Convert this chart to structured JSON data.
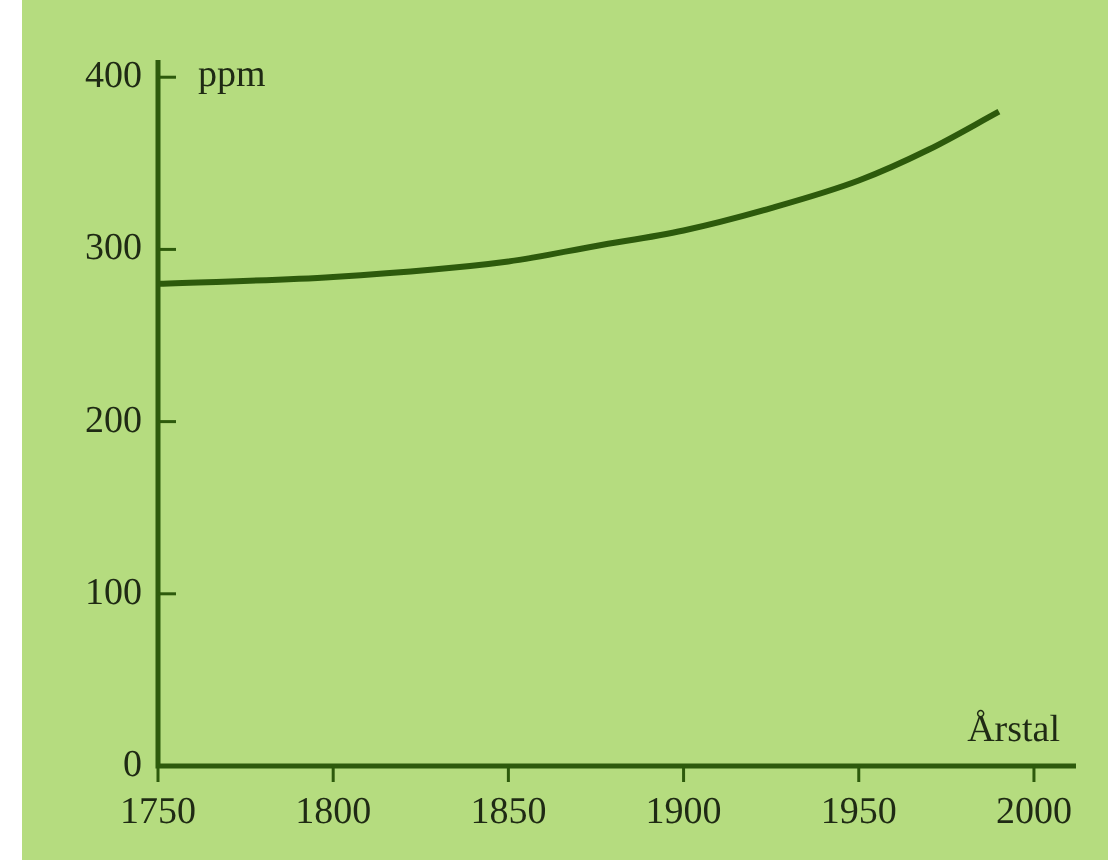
{
  "chart_data": {
    "type": "line",
    "xlabel": "Årstal",
    "ylabel": "ppm",
    "x": [
      1750,
      1800,
      1850,
      1875,
      1900,
      1925,
      1950,
      1970,
      1990
    ],
    "series": [
      {
        "color": "#2d5a0c",
        "values": [
          280,
          284,
          293,
          302,
          311,
          324,
          340,
          358,
          380
        ]
      }
    ],
    "xlim": [
      1750,
      2012
    ],
    "ylim": [
      0,
      410
    ],
    "xticks": [
      1750,
      1800,
      1850,
      1900,
      1950,
      2000
    ],
    "yticks": [
      0,
      100,
      200,
      300,
      400
    ],
    "grid": false,
    "legend": false,
    "marker": "none",
    "line_style": "solid"
  }
}
